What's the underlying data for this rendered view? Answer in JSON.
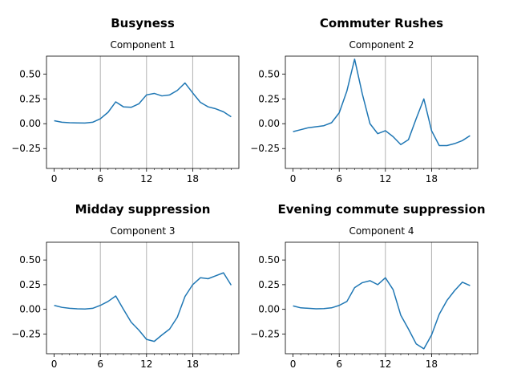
{
  "chart_data": [
    {
      "type": "line",
      "title": "Busyness",
      "subtitle": "Component 1",
      "x": [
        0,
        1,
        2,
        3,
        4,
        5,
        6,
        7,
        8,
        9,
        10,
        11,
        12,
        13,
        14,
        15,
        16,
        17,
        18,
        19,
        20,
        21,
        22,
        23
      ],
      "values": [
        0.03,
        0.015,
        0.01,
        0.008,
        0.007,
        0.015,
        0.05,
        0.115,
        0.22,
        0.17,
        0.165,
        0.2,
        0.29,
        0.305,
        0.28,
        0.29,
        0.335,
        0.41,
        0.31,
        0.215,
        0.17,
        0.15,
        0.12,
        0.07
      ],
      "xticks": [
        0,
        6,
        12,
        18
      ],
      "yticks": [
        -0.25,
        0.0,
        0.25,
        0.5
      ],
      "xlim": [
        -1,
        24
      ],
      "ylim": [
        -0.45,
        0.68
      ],
      "vlines": [
        6,
        12,
        18
      ],
      "color": "#1f77b4"
    },
    {
      "type": "line",
      "title": "Commuter Rushes",
      "subtitle": "Component 2",
      "x": [
        0,
        1,
        2,
        3,
        4,
        5,
        6,
        7,
        8,
        9,
        10,
        11,
        12,
        13,
        14,
        15,
        16,
        17,
        18,
        19,
        20,
        21,
        22,
        23
      ],
      "values": [
        -0.08,
        -0.06,
        -0.04,
        -0.03,
        -0.02,
        0.01,
        0.11,
        0.33,
        0.65,
        0.3,
        0.0,
        -0.1,
        -0.07,
        -0.13,
        -0.21,
        -0.16,
        0.05,
        0.25,
        -0.07,
        -0.22,
        -0.22,
        -0.2,
        -0.17,
        -0.12
      ],
      "xticks": [
        0,
        6,
        12,
        18
      ],
      "yticks": [
        -0.25,
        0.0,
        0.25,
        0.5
      ],
      "xlim": [
        -1,
        24
      ],
      "ylim": [
        -0.45,
        0.68
      ],
      "vlines": [
        6,
        12,
        18
      ],
      "color": "#1f77b4"
    },
    {
      "type": "line",
      "title": "Midday suppression",
      "subtitle": "Component 3",
      "x": [
        0,
        1,
        2,
        3,
        4,
        5,
        6,
        7,
        8,
        9,
        10,
        11,
        12,
        13,
        14,
        15,
        16,
        17,
        18,
        19,
        20,
        21,
        22,
        23
      ],
      "values": [
        0.04,
        0.02,
        0.01,
        0.005,
        0.003,
        0.01,
        0.04,
        0.08,
        0.135,
        0.0,
        -0.13,
        -0.21,
        -0.305,
        -0.325,
        -0.26,
        -0.2,
        -0.08,
        0.13,
        0.25,
        0.32,
        0.31,
        0.34,
        0.37,
        0.245
      ],
      "xticks": [
        0,
        6,
        12,
        18
      ],
      "yticks": [
        -0.25,
        0.0,
        0.25,
        0.5
      ],
      "xlim": [
        -1,
        24
      ],
      "ylim": [
        -0.45,
        0.68
      ],
      "vlines": [
        6,
        12,
        18
      ],
      "color": "#1f77b4"
    },
    {
      "type": "line",
      "title": "Evening commute suppression",
      "subtitle": "Component 4",
      "x": [
        0,
        1,
        2,
        3,
        4,
        5,
        6,
        7,
        8,
        9,
        10,
        11,
        12,
        13,
        14,
        15,
        16,
        17,
        18,
        19,
        20,
        21,
        22,
        23
      ],
      "values": [
        0.035,
        0.015,
        0.01,
        0.005,
        0.007,
        0.015,
        0.04,
        0.08,
        0.22,
        0.27,
        0.29,
        0.25,
        0.32,
        0.2,
        -0.06,
        -0.2,
        -0.35,
        -0.4,
        -0.26,
        -0.05,
        0.09,
        0.19,
        0.275,
        0.24
      ],
      "xticks": [
        0,
        6,
        12,
        18
      ],
      "yticks": [
        -0.25,
        0.0,
        0.25,
        0.5
      ],
      "xlim": [
        -1,
        24
      ],
      "ylim": [
        -0.45,
        0.68
      ],
      "vlines": [
        6,
        12,
        18
      ],
      "color": "#1f77b4"
    }
  ]
}
